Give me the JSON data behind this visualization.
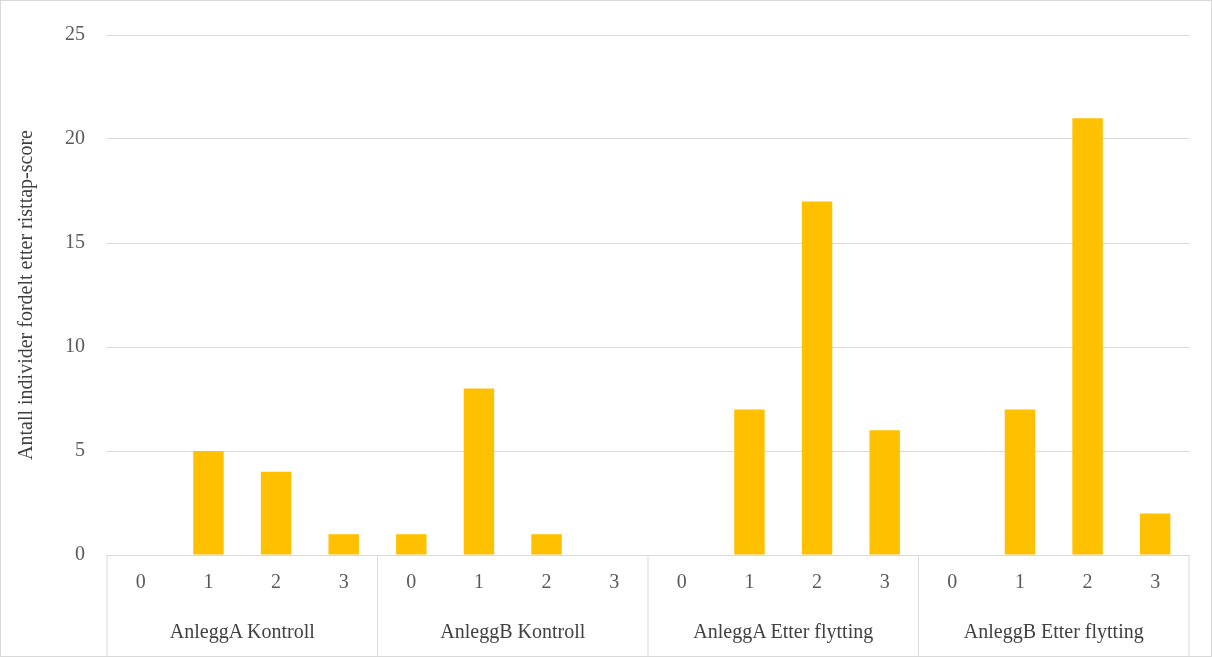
{
  "chart_data": {
    "type": "bar",
    "ylabel": "Antall individer fordelt etter risttap-score",
    "categories": [
      "0",
      "1",
      "2",
      "3",
      "0",
      "1",
      "2",
      "3",
      "0",
      "1",
      "2",
      "3",
      "0",
      "1",
      "2",
      "3"
    ],
    "values": [
      0,
      5,
      4,
      1,
      1,
      8,
      1,
      0,
      0,
      7,
      17,
      6,
      0,
      7,
      21,
      2
    ],
    "color": "#ffc000",
    "ylim": [
      0,
      25
    ],
    "yticks": [
      0,
      5,
      10,
      15,
      20,
      25
    ],
    "grid": "y",
    "annotations": [
      "AnleggA Kontroll",
      "AnleggB Kontroll",
      "AnleggA Etter flytting",
      "AnleggB Etter flytting"
    ]
  }
}
